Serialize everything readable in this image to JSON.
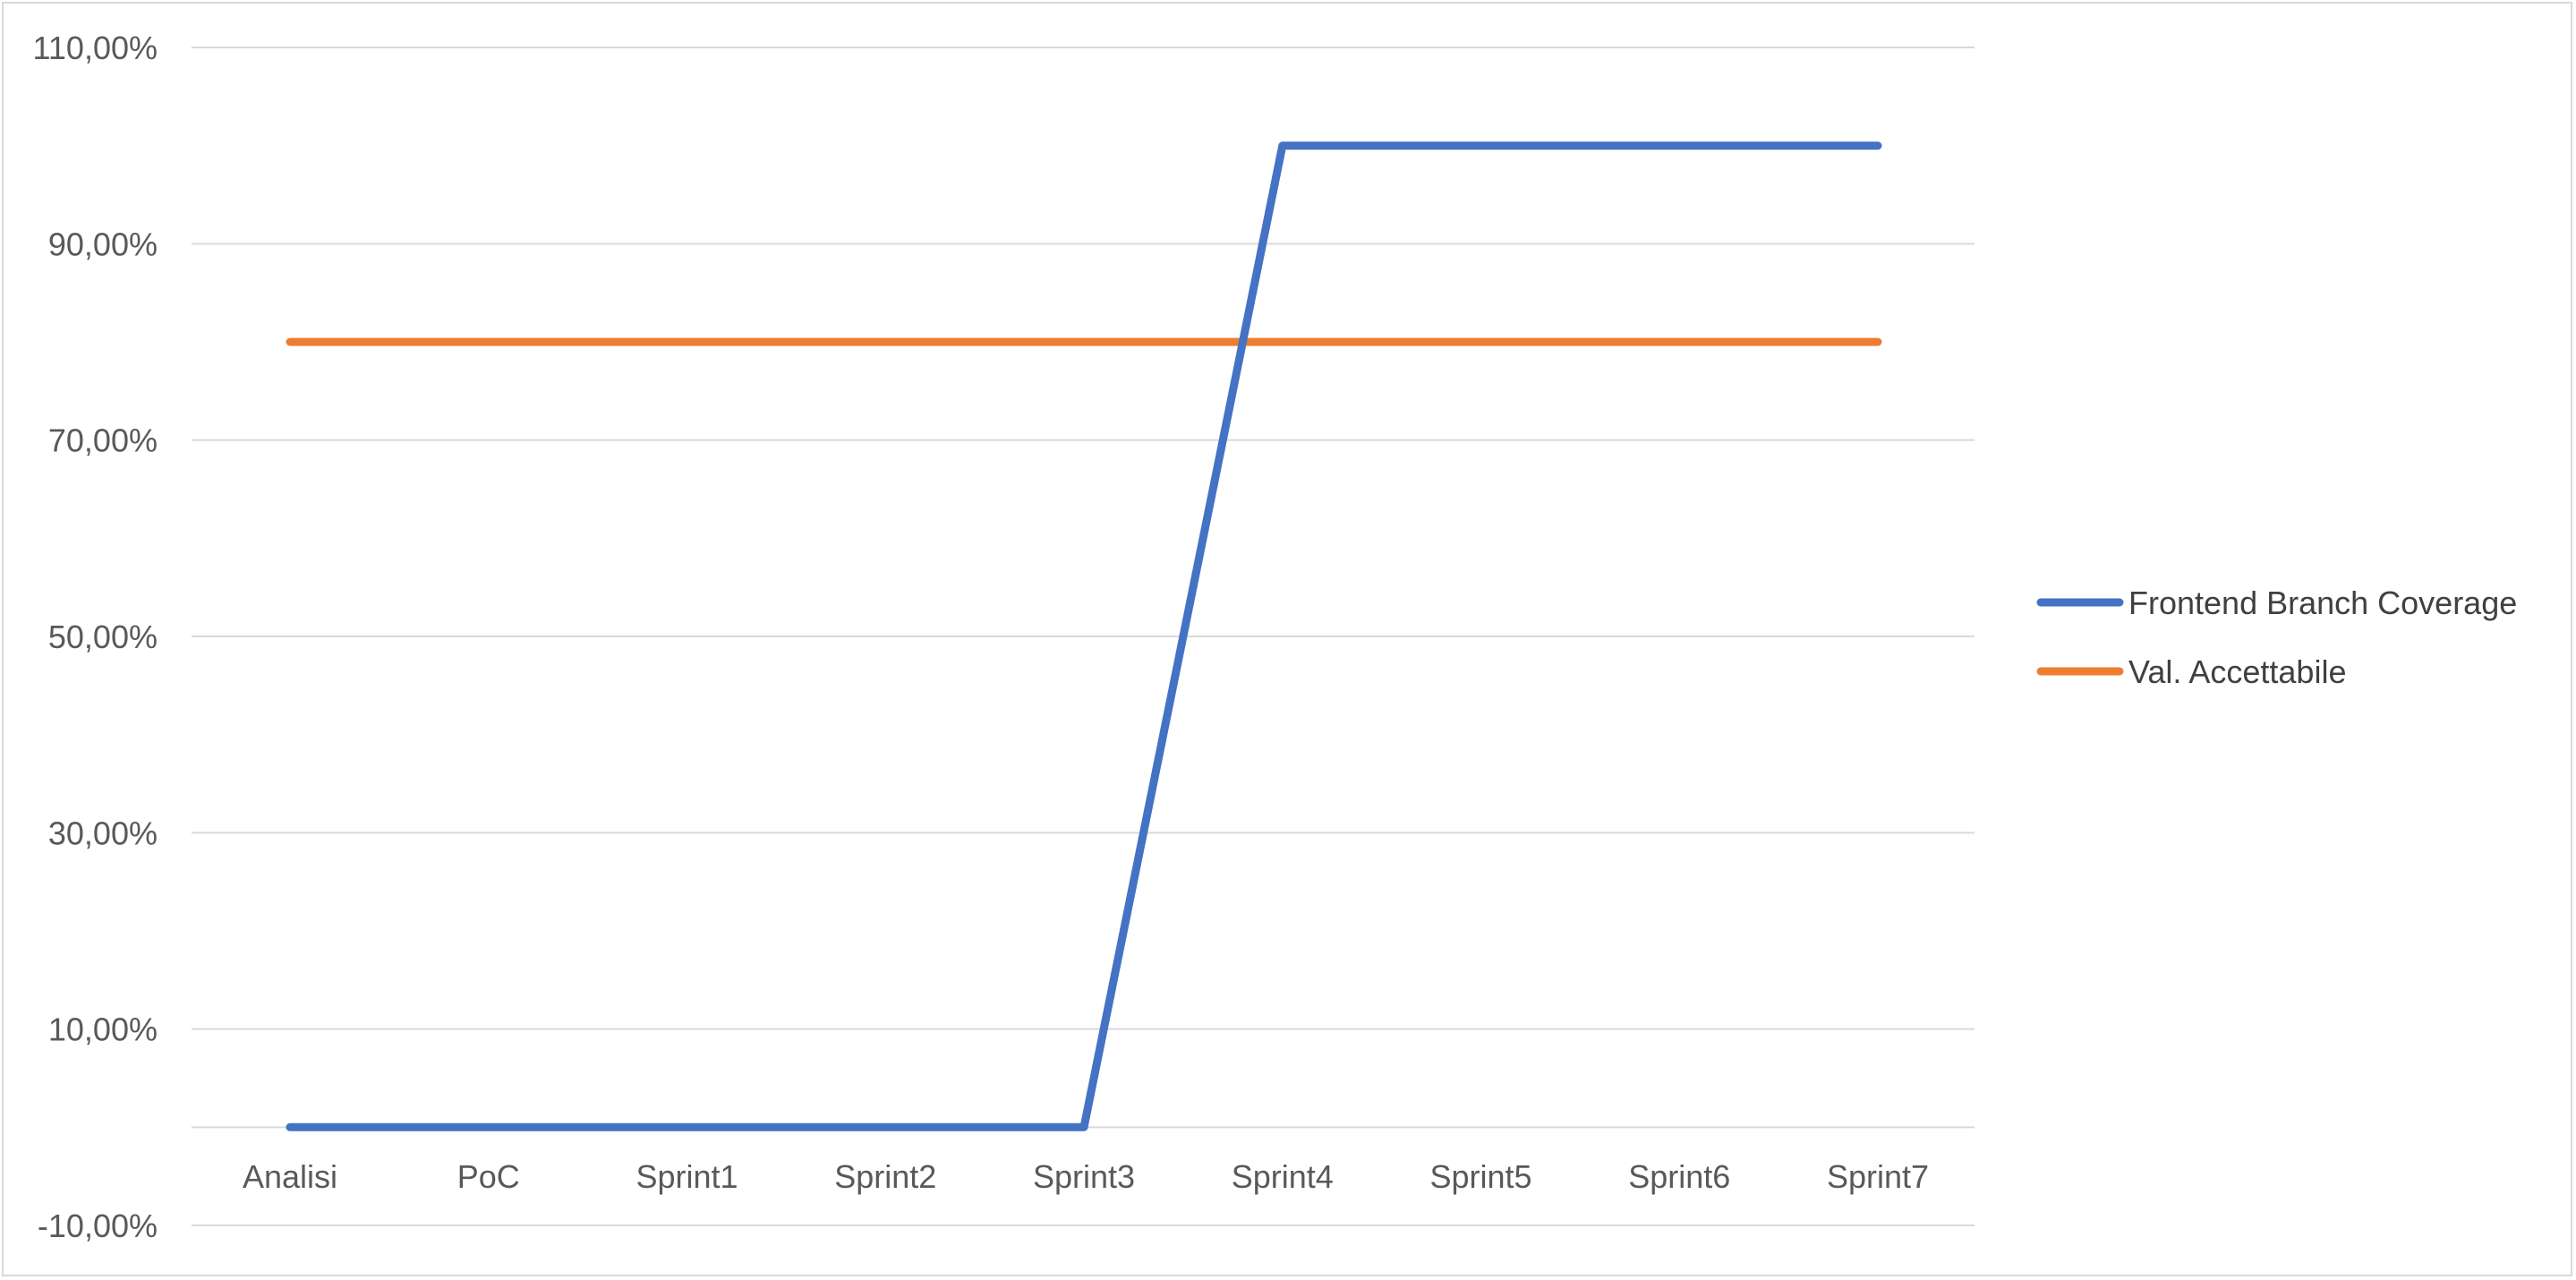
{
  "chart_data": {
    "type": "line",
    "title": "",
    "xlabel": "",
    "ylabel": "",
    "categories": [
      "Analisi",
      "PoC",
      "Sprint1",
      "Sprint2",
      "Sprint3",
      "Sprint4",
      "Sprint5",
      "Sprint6",
      "Sprint7"
    ],
    "ylim": [
      -0.1,
      1.1
    ],
    "y_major_ticks": [
      -0.1,
      0.1,
      0.3,
      0.5,
      0.7,
      0.9,
      1.1
    ],
    "y_tick_labels": [
      "-10,00%",
      "10,00%",
      "30,00%",
      "50,00%",
      "70,00%",
      "90,00%",
      "110,00%"
    ],
    "y_gridlines": [
      -0.1,
      0.0,
      0.1,
      0.3,
      0.5,
      0.7,
      0.9,
      1.1
    ],
    "grid": true,
    "legend_position": "right",
    "series": [
      {
        "name": "Frontend Branch Coverage",
        "color": "#4472c4",
        "values": [
          0,
          0,
          0,
          0,
          0,
          1.0,
          1.0,
          1.0,
          1.0
        ]
      },
      {
        "name": "Val. Accettabile",
        "color": "#ed7d31",
        "values": [
          0.8,
          0.8,
          0.8,
          0.8,
          0.8,
          0.8,
          0.8,
          0.8,
          0.8
        ]
      }
    ],
    "colors": {
      "grid": "#d9d9d9",
      "tick_text": "#595959",
      "legend_text": "#404040",
      "frame": "#d9d9d9"
    }
  }
}
